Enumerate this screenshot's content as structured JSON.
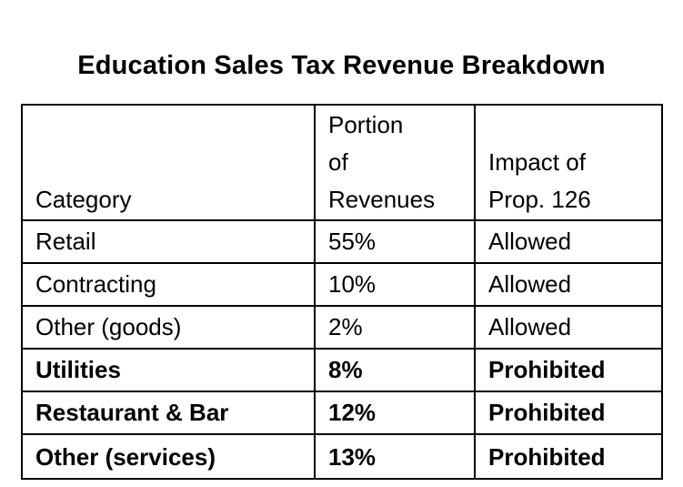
{
  "document": {
    "title": "Education Sales Tax Revenue Breakdown"
  },
  "table": {
    "headers": {
      "category": "Category",
      "portion_lines": [
        "Portion",
        "of",
        "Revenues"
      ],
      "impact_lines": [
        "Impact of",
        "Prop. 126"
      ]
    },
    "rows": [
      {
        "category": "Retail",
        "portion": "55%",
        "impact": "Allowed",
        "bold": false
      },
      {
        "category": "Contracting",
        "portion": "10%",
        "impact": "Allowed",
        "bold": false
      },
      {
        "category": "Other (goods)",
        "portion": "2%",
        "impact": "Allowed",
        "bold": false
      },
      {
        "category": "Utilities",
        "portion": "8%",
        "impact": "Prohibited",
        "bold": true
      },
      {
        "category": "Restaurant & Bar",
        "portion": "12%",
        "impact": "Prohibited",
        "bold": true
      },
      {
        "category": "Other (services)",
        "portion": "13%",
        "impact": "Prohibited",
        "bold": true
      }
    ]
  }
}
